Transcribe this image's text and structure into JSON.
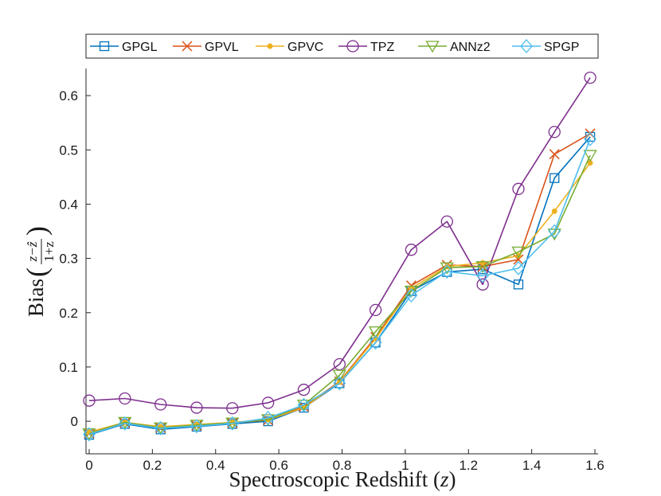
{
  "chart_data": {
    "type": "line",
    "xlabel": "Spectroscopic Redshift (z)",
    "ylabel": "Bias",
    "ylabel_fraction": {
      "numerator": "z−ẑ",
      "denominator": "1+z"
    },
    "xlim": [
      -0.01,
      1.61
    ],
    "ylim": [
      -0.06,
      0.65
    ],
    "xticks": [
      0,
      0.2,
      0.4,
      0.6,
      0.8,
      1,
      1.2,
      1.4,
      1.6
    ],
    "xtick_labels": [
      "0",
      "0.2",
      "0.4",
      "0.6",
      "0.8",
      "1",
      "1.2",
      "1.4",
      "1.6"
    ],
    "yticks": [
      0,
      0.1,
      0.2,
      0.3,
      0.4,
      0.5,
      0.6
    ],
    "ytick_labels": [
      "0",
      "0.1",
      "0.2",
      "0.3",
      "0.4",
      "0.5",
      "0.6"
    ],
    "legend_position": "top",
    "x": [
      0,
      0.113,
      0.226,
      0.34,
      0.453,
      0.566,
      0.679,
      0.792,
      0.906,
      1.019,
      1.132,
      1.245,
      1.358,
      1.472,
      1.585
    ],
    "series": [
      {
        "name": "GPGL",
        "color": "#0072BD",
        "marker": "square",
        "values": [
          -0.025,
          -0.005,
          -0.015,
          -0.01,
          -0.005,
          0.0,
          0.025,
          0.07,
          0.145,
          0.24,
          0.275,
          0.28,
          0.252,
          0.448,
          0.524
        ]
      },
      {
        "name": "GPVL",
        "color": "#D95319",
        "marker": "x",
        "values": [
          -0.022,
          -0.003,
          -0.012,
          -0.008,
          -0.003,
          0.002,
          0.027,
          0.073,
          0.155,
          0.25,
          0.288,
          0.285,
          0.298,
          0.492,
          0.53
        ]
      },
      {
        "name": "GPVC",
        "color": "#EDB120",
        "marker": "dot",
        "values": [
          -0.02,
          -0.002,
          -0.01,
          -0.006,
          -0.002,
          0.003,
          0.025,
          0.072,
          0.152,
          0.245,
          0.285,
          0.292,
          0.305,
          0.387,
          0.476
        ]
      },
      {
        "name": "TPZ",
        "color": "#7E2F8E",
        "marker": "circle",
        "values": [
          0.038,
          0.042,
          0.031,
          0.025,
          0.024,
          0.034,
          0.058,
          0.105,
          0.205,
          0.316,
          0.368,
          0.252,
          0.428,
          0.533,
          0.633
        ]
      },
      {
        "name": "ANNz2",
        "color": "#77AC30",
        "marker": "triangle-down",
        "values": [
          -0.023,
          -0.002,
          -0.012,
          -0.007,
          -0.003,
          0.003,
          0.03,
          0.085,
          0.165,
          0.24,
          0.283,
          0.285,
          0.312,
          0.345,
          0.49
        ]
      },
      {
        "name": "SPGP",
        "color": "#4DBEEE",
        "marker": "diamond",
        "values": [
          -0.024,
          -0.004,
          -0.013,
          -0.009,
          -0.004,
          0.006,
          0.03,
          0.07,
          0.145,
          0.232,
          0.276,
          0.268,
          0.282,
          0.35,
          0.52
        ]
      }
    ]
  }
}
